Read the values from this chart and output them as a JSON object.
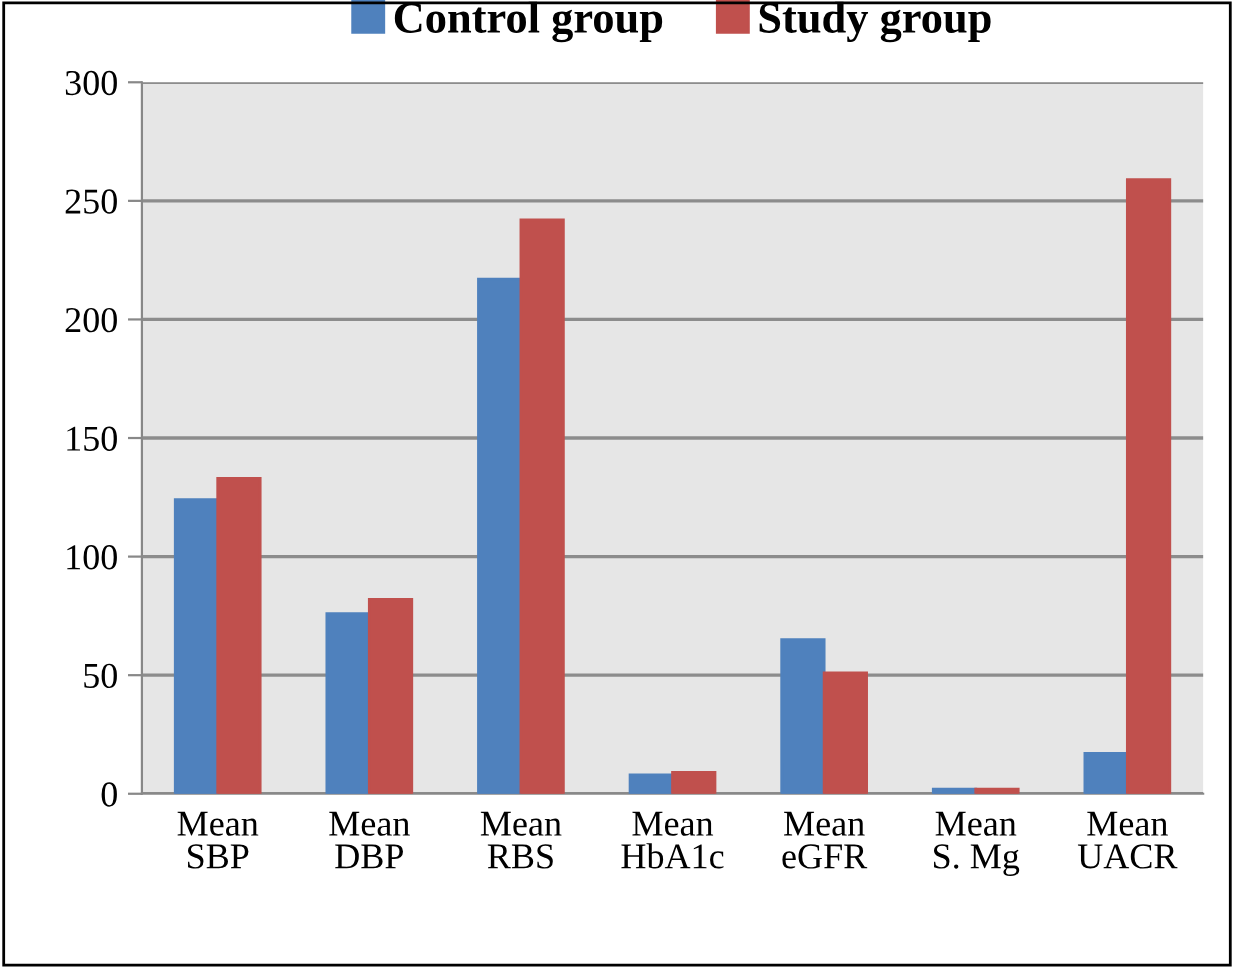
{
  "chart_data": {
    "type": "bar",
    "categories": [
      "Mean\nSBP",
      "Mean\nDBP",
      "Mean\nRBS",
      "Mean\nHbA1c",
      "Mean\neGFR",
      "Mean\nS. Mg",
      "Mean\nUACR"
    ],
    "series": [
      {
        "name": "Control group",
        "color": "#4f81bd",
        "values": [
          124,
          76,
          217,
          8,
          65,
          2,
          17
        ]
      },
      {
        "name": "Study group",
        "color": "#c0504d",
        "values": [
          133,
          82,
          242,
          9,
          51,
          2,
          259
        ]
      }
    ],
    "ylim": [
      0,
      300
    ],
    "yticks": [
      0,
      50,
      100,
      150,
      200,
      250,
      300
    ],
    "grid": "y",
    "legend": "top"
  }
}
